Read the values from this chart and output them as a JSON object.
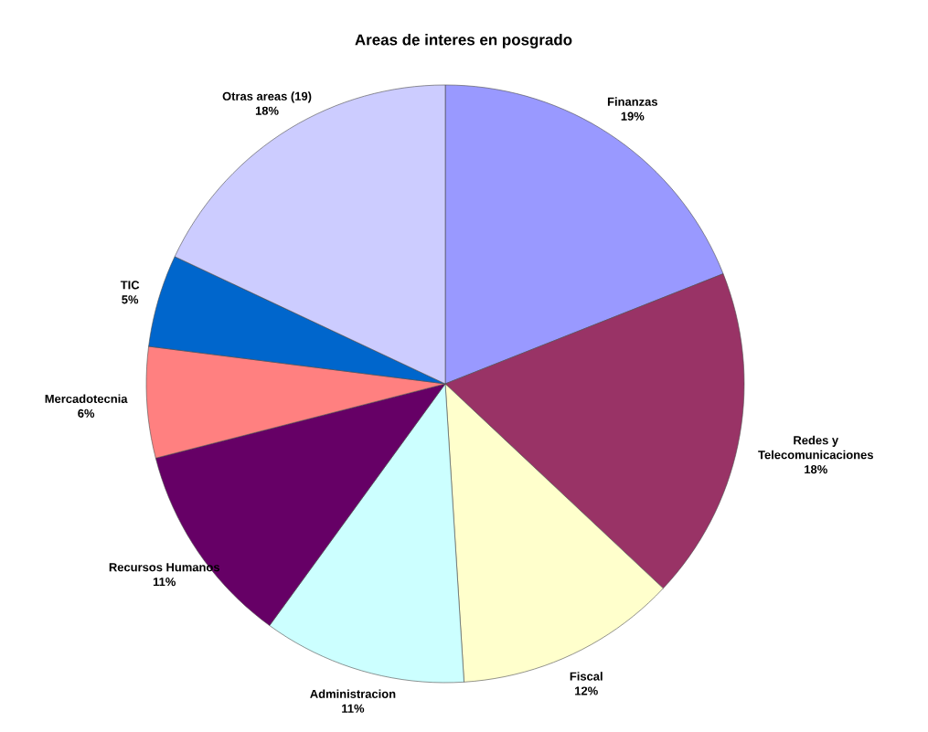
{
  "chart_data": {
    "type": "pie",
    "title": "Areas de interes en posgrado",
    "categories": [
      "Finanzas",
      "Redes y Telecomunicaciones",
      "Fiscal",
      "Administracion",
      "Recursos Humanos",
      "Mercadotecnia",
      "TIC",
      "Otras areas (19)"
    ],
    "values": [
      19,
      18,
      12,
      11,
      11,
      6,
      5,
      18
    ],
    "value_labels": [
      "19%",
      "18%",
      "12%",
      "11%",
      "11%",
      "6%",
      "5%",
      "18%"
    ],
    "colors": [
      "#9999ff",
      "#993366",
      "#ffffcc",
      "#ccffff",
      "#660066",
      "#ff8080",
      "#0066cc",
      "#ccccff"
    ]
  }
}
